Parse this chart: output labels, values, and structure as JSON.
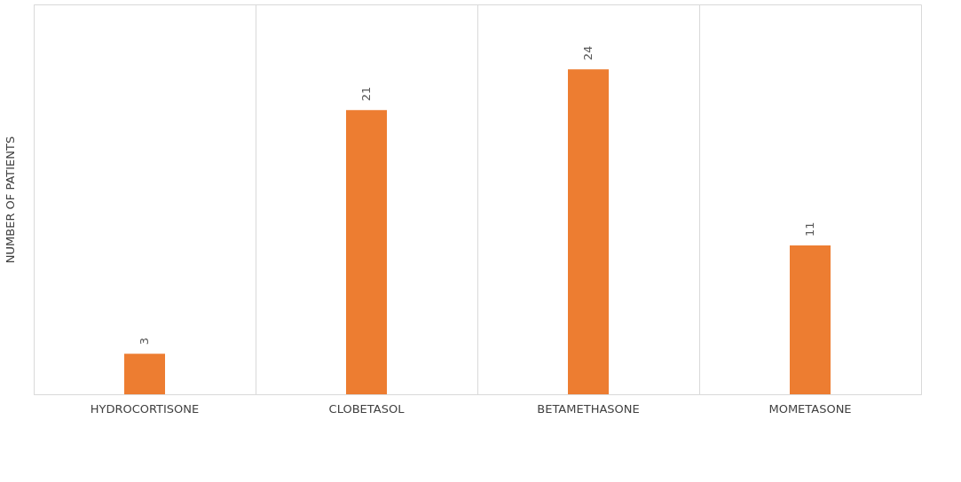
{
  "chart_data": {
    "type": "bar",
    "ylabel": "NUMBER OF PATIENTS",
    "categories": [
      "HYDROCORTISONE",
      "CLOBETASOL",
      "BETAMETHASONE",
      "MOMETASONE"
    ],
    "values": [
      3,
      21,
      24,
      11
    ],
    "color": "#ed7d31",
    "data_labels": true,
    "grid": "x"
  }
}
